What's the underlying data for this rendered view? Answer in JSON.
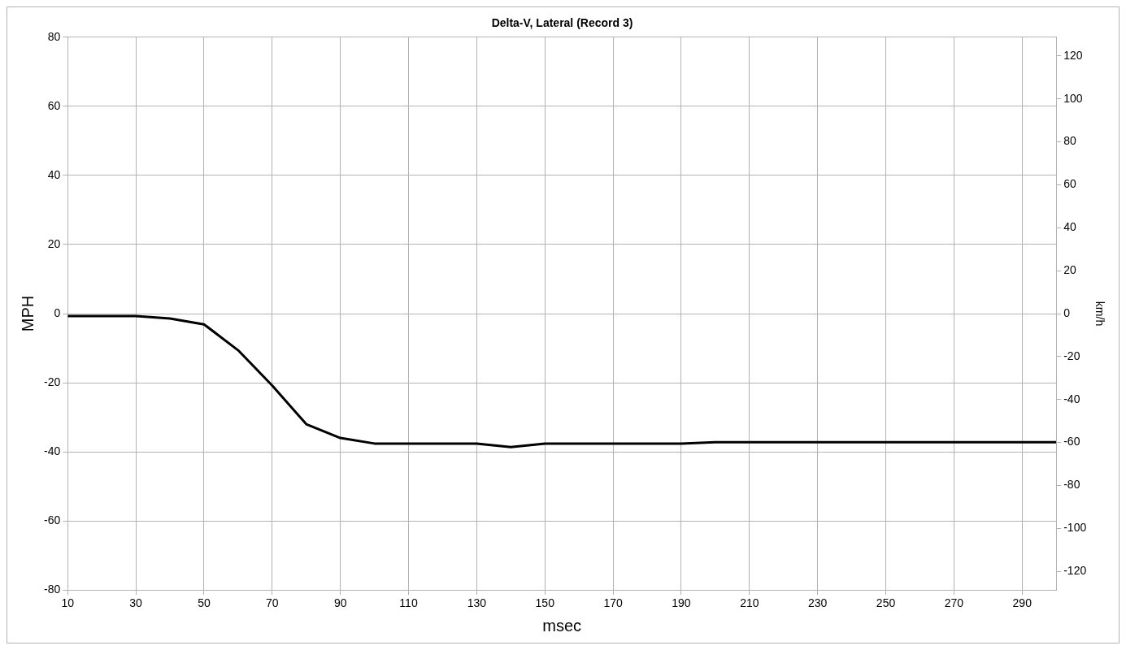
{
  "chart_data": {
    "type": "line",
    "title": "Delta-V, Lateral (Record 3)",
    "xlabel": "msec",
    "ylabel": "MPH",
    "y2label": "km/h",
    "x": [
      10,
      20,
      30,
      40,
      50,
      60,
      70,
      80,
      90,
      100,
      110,
      120,
      130,
      140,
      150,
      160,
      170,
      180,
      190,
      200,
      210,
      220,
      230,
      240,
      250,
      260,
      270,
      280,
      290,
      300
    ],
    "series": [
      {
        "color": "#000000",
        "values": [
          -0.7,
          -0.7,
          -0.7,
          -1.4,
          -3.1,
          -10.6,
          -20.8,
          -32,
          -36,
          -37.6,
          -37.6,
          -37.6,
          -37.6,
          -38.6,
          -37.6,
          -37.6,
          -37.6,
          -37.6,
          -37.6,
          -37.2,
          -37.2,
          -37.2,
          -37.2,
          -37.2,
          -37.2,
          -37.2,
          -37.2,
          -37.2,
          -37.2,
          -37.2
        ]
      }
    ],
    "xlim": [
      10,
      300
    ],
    "xticks": [
      10,
      30,
      50,
      70,
      90,
      110,
      130,
      150,
      170,
      190,
      210,
      230,
      250,
      270,
      290
    ],
    "ylim": [
      -80,
      80
    ],
    "yticks": [
      -80,
      -60,
      -40,
      -20,
      0,
      20,
      40,
      60,
      80
    ],
    "y2lim": [
      -128.7,
      128.7
    ],
    "y2ticks": [
      -120,
      -100,
      -80,
      -60,
      -40,
      -20,
      0,
      20,
      40,
      60,
      80,
      100,
      120
    ],
    "grid": true,
    "legend": false,
    "marker": "none",
    "line_style": "solid"
  }
}
